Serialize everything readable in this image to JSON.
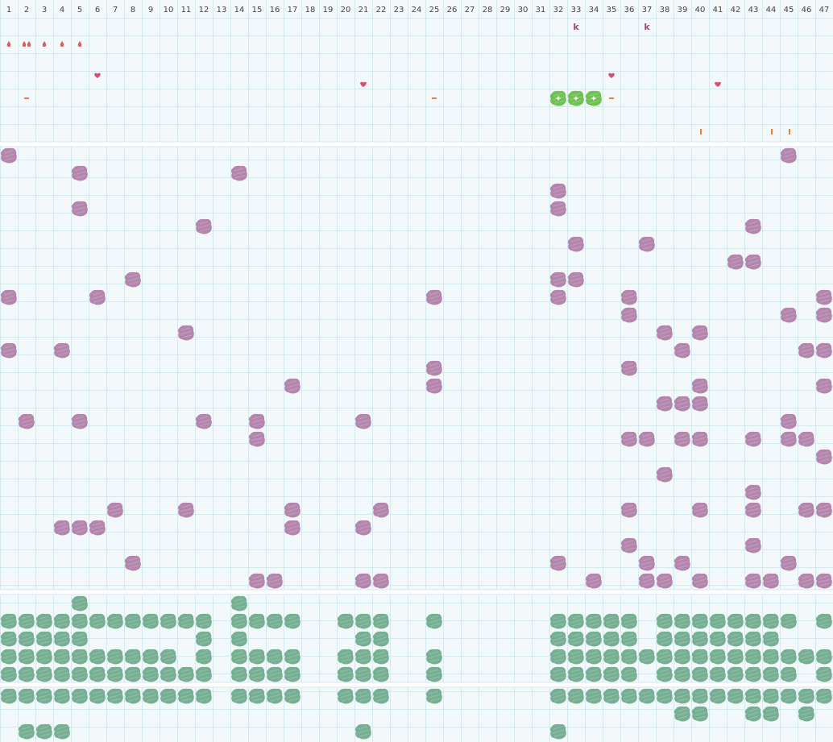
{
  "columns": [
    "1",
    "2",
    "3",
    "4",
    "5",
    "6",
    "7",
    "8",
    "9",
    "10",
    "11",
    "12",
    "13",
    "14",
    "15",
    "16",
    "17",
    "18",
    "19",
    "20",
    "21",
    "22",
    "23",
    "24",
    "25",
    "26",
    "27",
    "28",
    "29",
    "30",
    "31",
    "32",
    "33",
    "34",
    "35",
    "36",
    "37",
    "38",
    "39",
    "40",
    "41",
    "42",
    "43",
    "44",
    "45",
    "46",
    "47"
  ],
  "colors": {
    "background": "#f3f8fa",
    "grid": "#d6e9ee",
    "separator": "#ffffff",
    "purple_blob": "#b07ea9",
    "green_blob": "#6fab8c",
    "bright_green_blob": "#67bf49",
    "red_drop": "#e05a5a",
    "heart": "#d84f6d",
    "orange_dash": "#f07d3a",
    "letter": "#9a4b7f"
  },
  "top_lane": {
    "letters": [
      {
        "col": 33,
        "row": 1,
        "text": "k"
      },
      {
        "col": 37,
        "row": 1,
        "text": "k"
      }
    ],
    "drops": [
      {
        "col": 1,
        "row": 2
      },
      {
        "col": 2,
        "row": 2
      },
      {
        "col": 2,
        "row": 2,
        "offset": 1
      },
      {
        "col": 3,
        "row": 2
      },
      {
        "col": 4,
        "row": 2
      },
      {
        "col": 5,
        "row": 2
      }
    ],
    "hearts": [
      {
        "col": 6,
        "row": 4
      },
      {
        "col": 21,
        "row": 4.5
      },
      {
        "col": 35,
        "row": 4
      },
      {
        "col": 41,
        "row": 4.5
      }
    ],
    "dashes_h": [
      {
        "col": 2,
        "row": 5.5
      },
      {
        "col": 25,
        "row": 5.5
      },
      {
        "col": 35,
        "row": 5.5
      }
    ],
    "dashes_v": [
      {
        "col": 40,
        "row": 7.5
      },
      {
        "col": 44,
        "row": 7.5
      },
      {
        "col": 45,
        "row": 7.5
      }
    ],
    "bright_green": [
      {
        "col": 32,
        "row": 5.5
      },
      {
        "col": 33,
        "row": 5.5
      },
      {
        "col": 34,
        "row": 5.5
      }
    ]
  },
  "purple_lane": {
    "rows": [
      [
        1,
        45
      ],
      [
        5,
        14
      ],
      [
        32
      ],
      [
        5,
        32
      ],
      [
        12,
        43
      ],
      [
        33,
        37
      ],
      [
        42,
        43
      ],
      [
        8,
        32,
        33
      ],
      [
        1,
        6,
        25,
        32,
        36,
        47
      ],
      [
        36,
        45,
        47
      ],
      [
        11,
        38,
        40
      ],
      [
        1,
        4,
        39,
        46,
        47
      ],
      [
        25,
        36
      ],
      [
        17,
        25,
        40,
        47
      ],
      [
        38,
        39,
        40
      ],
      [
        2,
        5,
        12,
        15,
        21,
        45
      ],
      [
        15,
        36,
        37,
        39,
        40,
        43,
        45,
        46
      ],
      [
        47
      ],
      [
        38
      ],
      [
        43
      ],
      [
        7,
        11,
        17,
        22,
        36,
        40,
        43,
        46,
        47
      ],
      [
        4,
        5,
        6,
        17,
        21
      ],
      [
        36,
        43
      ],
      [
        8,
        32,
        37,
        39,
        45
      ],
      [
        15,
        16,
        21,
        22,
        34,
        37,
        38,
        40,
        43,
        44,
        46,
        47
      ]
    ]
  },
  "green_lane_a": {
    "rows": [
      [
        5,
        14
      ],
      [
        1,
        2,
        3,
        4,
        5,
        6,
        7,
        8,
        9,
        10,
        11,
        12,
        14,
        15,
        16,
        17,
        20,
        21,
        22,
        25,
        32,
        33,
        34,
        35,
        36,
        38,
        39,
        40,
        41,
        42,
        43,
        44,
        45,
        47
      ],
      [
        1,
        2,
        3,
        4,
        5,
        12,
        14,
        21,
        22,
        32,
        33,
        34,
        35,
        36,
        38,
        39,
        40,
        41,
        42,
        43,
        44
      ],
      [
        1,
        2,
        3,
        4,
        5,
        6,
        7,
        8,
        9,
        10,
        12,
        14,
        15,
        16,
        17,
        20,
        21,
        22,
        25,
        32,
        33,
        34,
        35,
        36,
        37,
        38,
        39,
        40,
        41,
        42,
        43,
        44,
        45,
        46,
        47
      ],
      [
        1,
        2,
        3,
        4,
        5,
        6,
        7,
        8,
        9,
        10,
        11,
        12,
        14,
        15,
        16,
        17,
        20,
        21,
        22,
        25,
        32,
        33,
        34,
        35,
        36,
        38,
        39,
        40,
        41,
        42,
        43,
        44,
        45,
        47
      ]
    ]
  },
  "green_lane_b": {
    "rows": [
      [
        1,
        2,
        3,
        4,
        5,
        6,
        7,
        8,
        9,
        10,
        11,
        12,
        14,
        15,
        16,
        17,
        20,
        21,
        22,
        25,
        32,
        33,
        34,
        35,
        36,
        37,
        38,
        39,
        40,
        41,
        42,
        43,
        44,
        45,
        46,
        47
      ],
      [
        39,
        40,
        43,
        44,
        46
      ],
      [
        2,
        3,
        4,
        21,
        32
      ]
    ]
  }
}
